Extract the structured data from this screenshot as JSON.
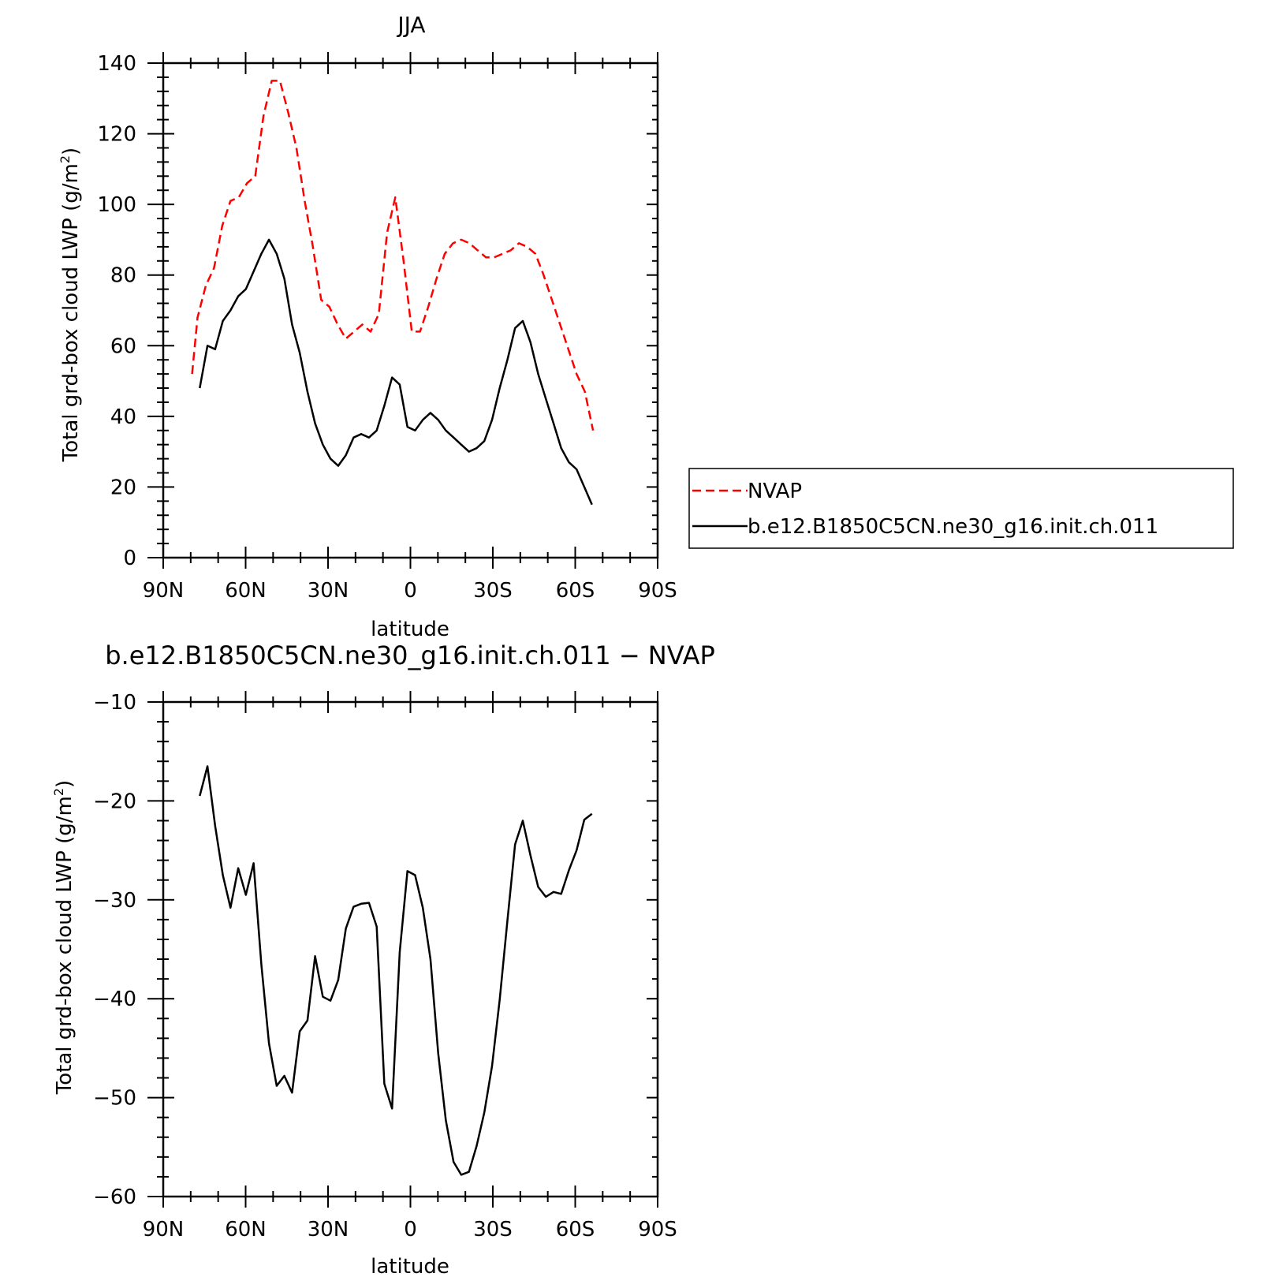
{
  "chart_data": [
    {
      "type": "line",
      "title": "JJA",
      "xlabel": "latitude",
      "ylabel": "Total grd-box cloud LWP (g/m",
      "ylabel_sup": "2",
      "ylabel_close": ")",
      "xlim": [
        90,
        -90
      ],
      "ylim": [
        0,
        140
      ],
      "xtick_values": [
        90,
        60,
        30,
        0,
        -30,
        -60,
        -90
      ],
      "xtick_labels": [
        "90N",
        "60N",
        "30N",
        "0",
        "30S",
        "60S",
        "90S"
      ],
      "ytick_values": [
        0,
        20,
        40,
        60,
        80,
        100,
        120,
        140
      ],
      "ytick_labels": [
        "0",
        "20",
        "40",
        "60",
        "80",
        "100",
        "120",
        "140"
      ],
      "legend": {
        "placement": "right",
        "entries": [
          "NVAP",
          "b.e12.B1850C5CN.ne30_g16.init.ch.011"
        ]
      },
      "series": [
        {
          "name": "NVAP",
          "color": "#ff0000",
          "dash": "dashed",
          "x": [
            79.5,
            77.5,
            74.5,
            71.5,
            68.5,
            65.5,
            62.5,
            59.5,
            56.5,
            53.5,
            50.5,
            47.5,
            44.5,
            41.5,
            38.5,
            35.5,
            32.5,
            29.5,
            26.5,
            23.5,
            20.5,
            17.5,
            14.5,
            11.5,
            8.5,
            5.5,
            2.5,
            -0.5,
            -3.5,
            -6.5,
            -9.5,
            -12.5,
            -15.5,
            -18.5,
            -21.5,
            -24.5,
            -27.5,
            -30.5,
            -33.5,
            -36.5,
            -39.5,
            -42.5,
            -45.5,
            -48.5,
            -51.5,
            -54.5,
            -57.5,
            -60.5,
            -63.5,
            -66.5
          ],
          "y": [
            52,
            68,
            77,
            82,
            94,
            101,
            102,
            106,
            108,
            125,
            135,
            135,
            126,
            116,
            101,
            88,
            73,
            71,
            66,
            62,
            64,
            66,
            64,
            69,
            92,
            102,
            84,
            64,
            64,
            71,
            79,
            86,
            89,
            90,
            89,
            87,
            85,
            85,
            86,
            87,
            89,
            88,
            86,
            80,
            73,
            66,
            59,
            52,
            47,
            36
          ]
        },
        {
          "name": "b.e12.B1850C5CN.ne30_g16.init.ch.011",
          "color": "#000000",
          "dash": "solid",
          "x": [
            76.7,
            73.9,
            71.1,
            68.3,
            65.5,
            62.7,
            59.9,
            57.1,
            54.3,
            51.5,
            48.7,
            45.9,
            43.1,
            40.3,
            37.5,
            34.7,
            31.9,
            29.1,
            26.3,
            23.5,
            20.7,
            17.9,
            15.1,
            12.3,
            9.5,
            6.7,
            3.9,
            1.1,
            -1.7,
            -4.5,
            -7.3,
            -10.1,
            -12.9,
            -15.7,
            -18.5,
            -21.3,
            -24.1,
            -26.9,
            -29.7,
            -32.5,
            -35.3,
            -38.1,
            -40.9,
            -43.7,
            -46.5,
            -49.3,
            -52.1,
            -54.9,
            -57.7,
            -60.5,
            -63.3,
            -66.1
          ],
          "y": [
            48,
            60,
            59,
            67,
            70,
            74,
            76,
            81,
            86,
            90,
            86,
            79,
            66,
            58,
            47,
            38,
            32,
            28,
            26,
            29,
            34,
            35,
            34,
            36,
            43,
            51,
            49,
            37,
            36,
            39,
            41,
            39,
            36,
            34,
            32,
            30,
            31,
            33,
            39,
            48,
            56,
            65,
            67,
            61,
            52,
            45,
            38,
            31,
            27,
            25,
            20,
            15
          ]
        }
      ]
    },
    {
      "type": "line",
      "title": "b.e12.B1850C5CN.ne30_g16.init.ch.011 − NVAP",
      "xlabel": "latitude",
      "ylabel": "Total grd-box cloud LWP (g/m",
      "ylabel_sup": "2",
      "ylabel_close": ")",
      "xlim": [
        90,
        -90
      ],
      "ylim": [
        -60,
        -10
      ],
      "xtick_values": [
        90,
        60,
        30,
        0,
        -30,
        -60,
        -90
      ],
      "xtick_labels": [
        "90N",
        "60N",
        "30N",
        "0",
        "30S",
        "60S",
        "90S"
      ],
      "ytick_values": [
        -10,
        -20,
        -30,
        -40,
        -50,
        -60
      ],
      "ytick_labels": [
        "−10",
        "−20",
        "−30",
        "−40",
        "−50",
        "−60"
      ],
      "series": [
        {
          "color": "#000000",
          "dash": "solid",
          "x": [
            76.7,
            73.9,
            71.1,
            68.3,
            65.5,
            62.7,
            59.9,
            57.1,
            54.3,
            51.5,
            48.7,
            45.9,
            43.1,
            40.3,
            37.5,
            34.7,
            31.9,
            29.1,
            26.3,
            23.5,
            20.7,
            17.9,
            15.1,
            12.3,
            9.5,
            6.7,
            3.9,
            1.1,
            -1.7,
            -4.5,
            -7.3,
            -10.1,
            -12.9,
            -15.7,
            -18.5,
            -21.3,
            -24.1,
            -26.9,
            -29.7,
            -32.5,
            -35.3,
            -38.1,
            -40.9,
            -43.7,
            -46.5,
            -49.3,
            -52.1,
            -54.9,
            -57.7,
            -60.5,
            -63.3,
            -66.1
          ],
          "y": [
            -19.5,
            -16.5,
            -22.5,
            -27.5,
            -30.8,
            -26.8,
            -29.5,
            -26.3,
            -36.5,
            -44.5,
            -48.8,
            -47.8,
            -49.5,
            -43.3,
            -42.2,
            -35.7,
            -39.8,
            -40.2,
            -38.1,
            -32.9,
            -30.7,
            -30.4,
            -30.3,
            -32.7,
            -48.6,
            -51.1,
            -35.3,
            -27.1,
            -27.5,
            -30.8,
            -36.0,
            -45.5,
            -52.3,
            -56.5,
            -57.8,
            -57.5,
            -54.9,
            -51.5,
            -46.8,
            -40.1,
            -32.1,
            -24.4,
            -22.0,
            -25.5,
            -28.7,
            -29.7,
            -29.2,
            -29.4,
            -27.0,
            -25.0,
            -21.9,
            -21.3
          ]
        }
      ]
    }
  ]
}
